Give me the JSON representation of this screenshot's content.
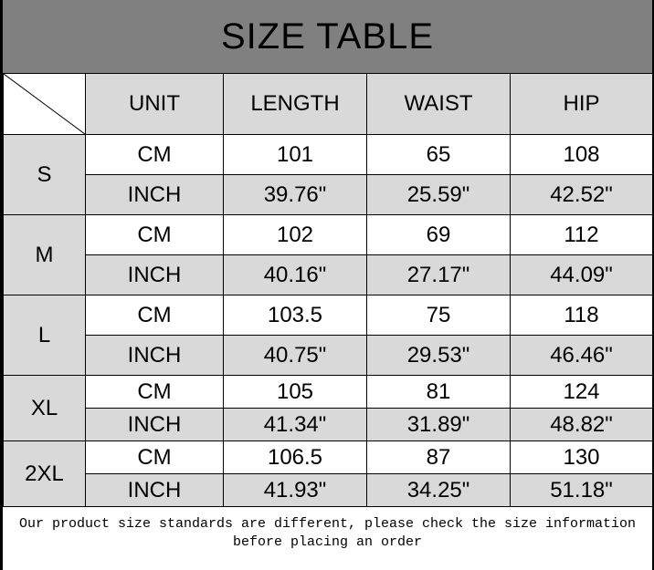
{
  "title": "SIZE TABLE",
  "headers": [
    "UNIT",
    "LENGTH",
    "WAIST",
    "HIP"
  ],
  "rows": [
    {
      "size": "S",
      "cm": {
        "unit": "CM",
        "length": "101",
        "waist": "65",
        "hip": "108"
      },
      "inch": {
        "unit": "INCH",
        "length": "39.76\"",
        "waist": "25.59\"",
        "hip": "42.52\""
      }
    },
    {
      "size": "M",
      "cm": {
        "unit": "CM",
        "length": "102",
        "waist": "69",
        "hip": "112"
      },
      "inch": {
        "unit": "INCH",
        "length": "40.16\"",
        "waist": "27.17\"",
        "hip": "44.09\""
      }
    },
    {
      "size": "L",
      "cm": {
        "unit": "CM",
        "length": "103.5",
        "waist": "75",
        "hip": "118"
      },
      "inch": {
        "unit": "INCH",
        "length": "40.75\"",
        "waist": "29.53\"",
        "hip": "46.46\""
      }
    },
    {
      "size": "XL",
      "cm": {
        "unit": "CM",
        "length": "105",
        "waist": "81",
        "hip": "124"
      },
      "inch": {
        "unit": "INCH",
        "length": "41.34\"",
        "waist": "31.89\"",
        "hip": "48.82\""
      }
    },
    {
      "size": "2XL",
      "cm": {
        "unit": "CM",
        "length": "106.5",
        "waist": "87",
        "hip": "130"
      },
      "inch": {
        "unit": "INCH",
        "length": "41.93\"",
        "waist": "34.25\"",
        "hip": "51.18\""
      }
    }
  ],
  "footer": {
    "line1": "Our product size standards are different, please check the size information",
    "line2": "before placing an order"
  },
  "colors": {
    "title_bg": "#808080",
    "cell_gray": "#d9d9d9"
  }
}
